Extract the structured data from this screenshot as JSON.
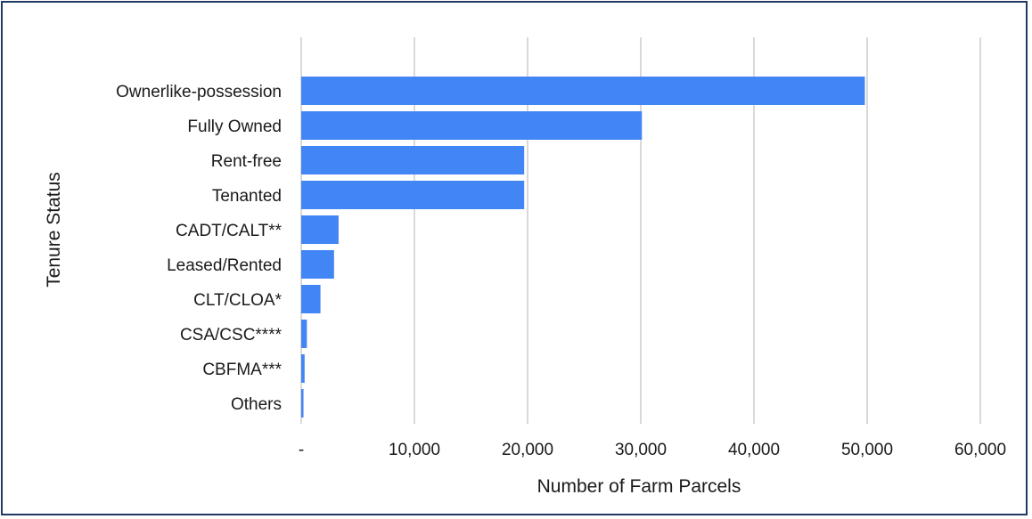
{
  "chart_data": {
    "type": "bar",
    "orientation": "horizontal",
    "categories": [
      "Ownerlike-possession",
      "Fully Owned",
      "Rent-free",
      "Tenanted",
      "CADT/CALT**",
      "Leased/Rented",
      "CLT/CLOA*",
      "CSA/CSC****",
      "CBFMA***",
      "Others"
    ],
    "values": [
      49800,
      30100,
      19700,
      19700,
      3300,
      2900,
      1700,
      500,
      300,
      200
    ],
    "xlabel": "Number of Farm Parcels",
    "ylabel": "Tenure Status",
    "xlim": [
      0,
      60000
    ],
    "xticks": [
      0,
      10000,
      20000,
      30000,
      40000,
      50000,
      60000
    ],
    "xtick_labels": [
      "-",
      "10,000",
      "20,000",
      "30,000",
      "40,000",
      "50,000",
      "60,000"
    ],
    "grid": "vertical",
    "legend": "none",
    "bar_color": "#4285f4"
  }
}
